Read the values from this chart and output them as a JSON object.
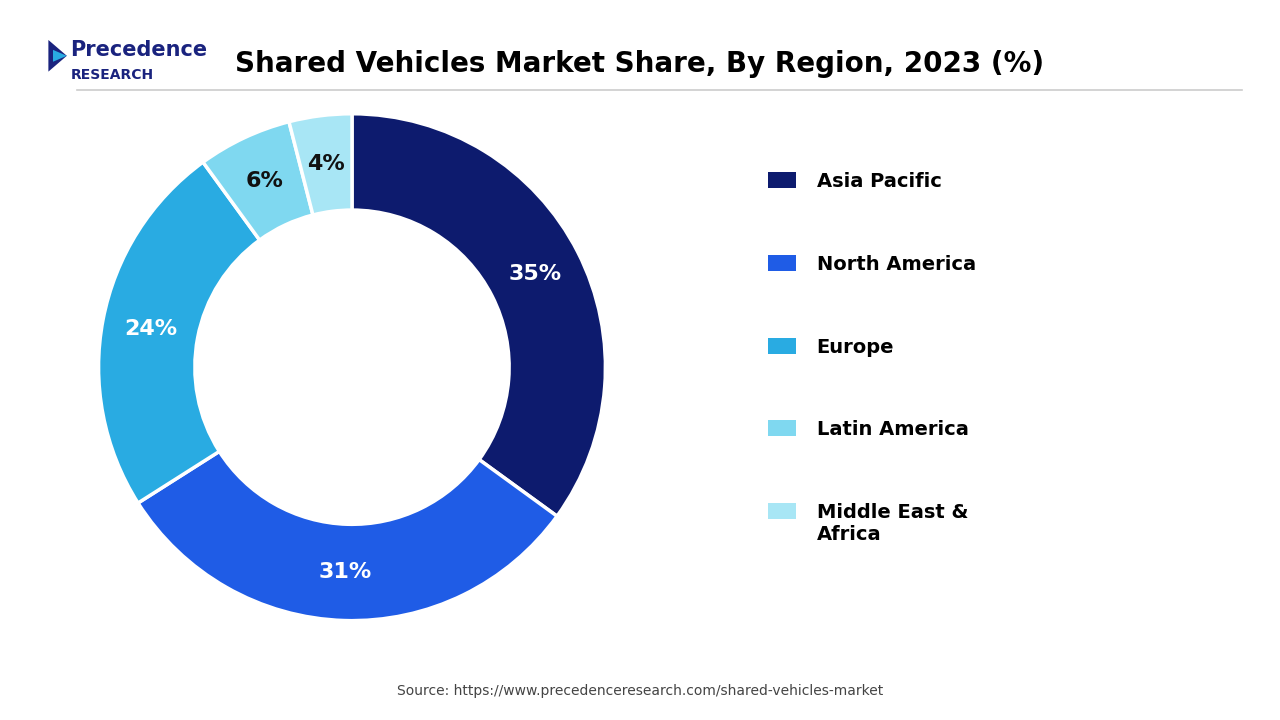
{
  "title": "Shared Vehicles Market Share, By Region, 2023 (%)",
  "title_fontsize": 20,
  "title_fontweight": "bold",
  "source_text": "Source: https://www.precedenceresearch.com/shared-vehicles-market",
  "labels": [
    "Asia Pacific",
    "North America",
    "Europe",
    "Latin America",
    "Middle East &\nAfrica"
  ],
  "values": [
    35,
    31,
    24,
    6,
    4
  ],
  "colors": [
    "#0d1b6e",
    "#1f5ce6",
    "#29abe2",
    "#7fd8f0",
    "#a8e6f5"
  ],
  "pct_colors": [
    "white",
    "white",
    "white",
    "#111111",
    "#111111"
  ],
  "donut_width": 0.38,
  "background_color": "#ffffff",
  "legend_fontsize": 14,
  "pct_fontsize": 16,
  "pct_fontweight": "bold",
  "logo_text_line1": "Precedence",
  "logo_text_line2": "RESEARCH"
}
